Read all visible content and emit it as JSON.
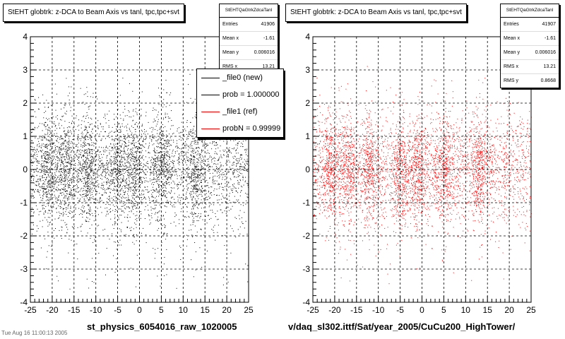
{
  "chart_data": [
    {
      "type": "scatter",
      "title": "StEHT globtrk: z-DCA to Beam Axis vs tanl, tpc,tpc+svt",
      "xlim": [
        -25,
        25
      ],
      "ylim": [
        -4,
        4
      ],
      "x_ticks": [
        "-25",
        "-20",
        "-15",
        "-10",
        "-5",
        "0",
        "5",
        "10",
        "15",
        "20",
        "25"
      ],
      "y_ticks": [
        "-4",
        "-3",
        "-2",
        "-1",
        "0",
        "1",
        "2",
        "3",
        "4"
      ],
      "grid": true,
      "marker_color": "#000000",
      "xlabel": "st_physics_6054016_raw_1020005",
      "stats": {
        "title": "StEHTQaGtrkZdcaTanl",
        "rows": [
          {
            "label": "Entries",
            "value": "41906"
          },
          {
            "label": "Mean x",
            "value": "-1.61"
          },
          {
            "label": "Mean y",
            "value": "0.006016"
          },
          {
            "label": "RMS x",
            "value": "13.21"
          }
        ]
      },
      "legend": {
        "position": "top-right",
        "entries": [
          {
            "label": "_file0 (new)",
            "color": "#000000"
          },
          {
            "label": "prob = 1.000000",
            "color": "#000000"
          },
          {
            "label": "_file1 (ref)",
            "color": "#ff0000"
          },
          {
            "label": "probN = 0.99999",
            "color": "#ff0000"
          }
        ]
      },
      "density_bands_x": [
        -21,
        -17,
        -12,
        -5,
        -1,
        5,
        13
      ]
    },
    {
      "type": "scatter",
      "title": "StEHT globtrk: z-DCA to Beam Axis vs tanl, tpc,tpc+svt",
      "xlim": [
        -25,
        25
      ],
      "ylim": [
        -4,
        4
      ],
      "x_ticks": [
        "-25",
        "-20",
        "-15",
        "-10",
        "-5",
        "0",
        "5",
        "10",
        "15",
        "20",
        "25"
      ],
      "y_ticks": [
        "-4",
        "-3",
        "-2",
        "-1",
        "0",
        "1",
        "2",
        "3",
        "4"
      ],
      "grid": true,
      "marker_color": "#ff0000",
      "xlabel": "v/daq_sl302.ittf/Sat/year_2005/CuCu200_HighTower/",
      "stats": {
        "title": "StEHTQaGtrkZdcaTanl",
        "rows": [
          {
            "label": "Entries",
            "value": "41907"
          },
          {
            "label": "Mean x",
            "value": "-1.61"
          },
          {
            "label": "Mean y",
            "value": "0.006016"
          },
          {
            "label": "RMS x",
            "value": "13.21"
          },
          {
            "label": "RMS y",
            "value": "0.8668"
          }
        ]
      },
      "density_bands_x": [
        -21,
        -17,
        -12,
        -5,
        -1,
        5,
        13
      ]
    }
  ],
  "footer_text": "Tue Aug 16 11:00:13 2005"
}
